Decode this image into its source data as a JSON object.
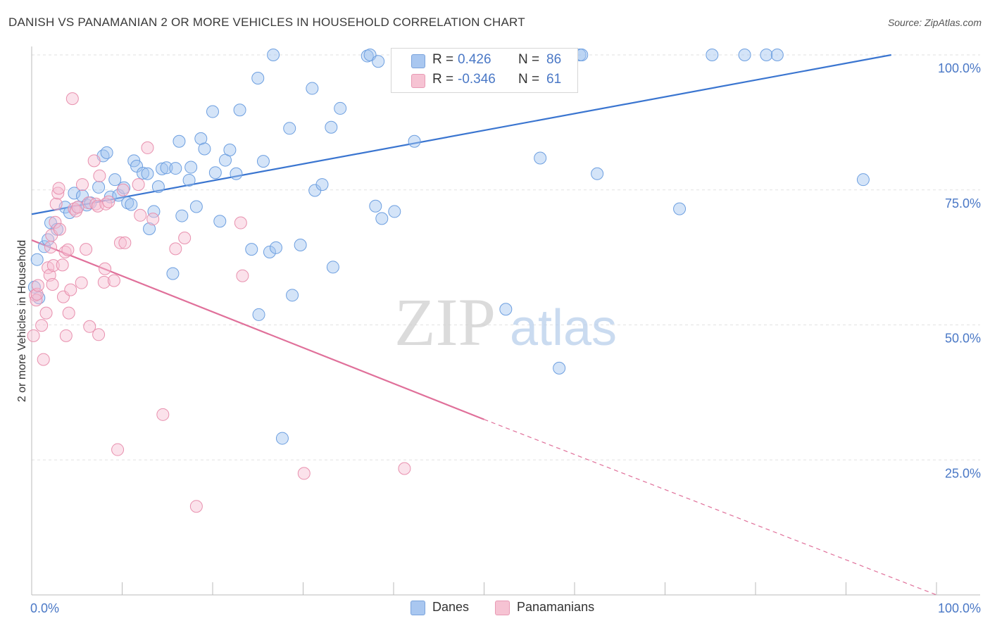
{
  "title": "DANISH VS PANAMANIAN 2 OR MORE VEHICLES IN HOUSEHOLD CORRELATION CHART",
  "source": "Source: ZipAtlas.com",
  "watermark": {
    "zip": "ZIP",
    "atlas": "atlas"
  },
  "legend_top": [
    {
      "r_label": "R =",
      "r_value": "0.426",
      "n_label": "N =",
      "n_value": "86",
      "color": "#a9c7f0",
      "border": "#7aa3dc"
    },
    {
      "r_label": "R =",
      "r_value": "-0.346",
      "n_label": "N =",
      "n_value": "61",
      "color": "#f6c3d3",
      "border": "#e89ab4"
    }
  ],
  "legend_bottom": [
    {
      "label": "Danes",
      "color": "#a9c7f0",
      "border": "#7aa3dc"
    },
    {
      "label": "Panamanians",
      "color": "#f6c3d3",
      "border": "#e89ab4"
    }
  ],
  "chart_data": {
    "type": "scatter",
    "title": "DANISH VS PANAMANIAN 2 OR MORE VEHICLES IN HOUSEHOLD CORRELATION CHART",
    "xlabel": "",
    "ylabel": "2 or more Vehicles in Household",
    "xlim": [
      0,
      100
    ],
    "ylim": [
      0,
      100
    ],
    "x_tick_labels": [
      "0.0%",
      "100.0%"
    ],
    "y_tick_labels": [
      {
        "value": 100,
        "label": "100.0%"
      },
      {
        "value": 75,
        "label": "75.0%"
      },
      {
        "value": 50,
        "label": "50.0%"
      },
      {
        "value": 25,
        "label": "25.0%"
      }
    ],
    "grid": true,
    "series": [
      {
        "name": "Danes",
        "color": "#6d9fe0",
        "fill": "rgba(160,195,240,0.45)",
        "trend": {
          "x0": 0,
          "y0": 70.5,
          "x1": 95,
          "y1": 100,
          "color": "#3a75d0"
        },
        "points": [
          [
            0.6,
            62.1
          ],
          [
            0.3,
            57.0
          ],
          [
            0.8,
            55.0
          ],
          [
            1.4,
            64.5
          ],
          [
            1.8,
            65.8
          ],
          [
            2.1,
            68.9
          ],
          [
            2.8,
            67.7
          ],
          [
            3.7,
            71.8
          ],
          [
            4.2,
            70.8
          ],
          [
            4.7,
            74.4
          ],
          [
            5.1,
            71.8
          ],
          [
            5.6,
            73.9
          ],
          [
            6.1,
            72.2
          ],
          [
            6.5,
            72.6
          ],
          [
            7.4,
            75.5
          ],
          [
            7.9,
            81.3
          ],
          [
            8.3,
            81.9
          ],
          [
            8.7,
            73.7
          ],
          [
            9.2,
            76.9
          ],
          [
            9.6,
            74.0
          ],
          [
            10.2,
            75.4
          ],
          [
            10.6,
            72.6
          ],
          [
            11.0,
            72.3
          ],
          [
            11.3,
            80.4
          ],
          [
            11.6,
            79.4
          ],
          [
            12.3,
            78.1
          ],
          [
            12.8,
            78.0
          ],
          [
            13.0,
            67.8
          ],
          [
            13.5,
            71.0
          ],
          [
            14.0,
            75.6
          ],
          [
            14.4,
            78.9
          ],
          [
            14.9,
            79.1
          ],
          [
            15.6,
            59.5
          ],
          [
            15.9,
            79.0
          ],
          [
            16.3,
            84.0
          ],
          [
            16.6,
            70.2
          ],
          [
            17.4,
            76.8
          ],
          [
            17.6,
            79.2
          ],
          [
            18.2,
            71.9
          ],
          [
            18.7,
            84.5
          ],
          [
            19.1,
            82.6
          ],
          [
            20.0,
            89.5
          ],
          [
            20.3,
            78.2
          ],
          [
            20.8,
            69.2
          ],
          [
            21.4,
            80.5
          ],
          [
            21.9,
            82.4
          ],
          [
            22.6,
            78.0
          ],
          [
            23.0,
            89.8
          ],
          [
            24.3,
            64.0
          ],
          [
            25.0,
            95.7
          ],
          [
            25.1,
            51.9
          ],
          [
            25.6,
            80.3
          ],
          [
            26.3,
            63.5
          ],
          [
            26.7,
            100.0
          ],
          [
            27.0,
            64.3
          ],
          [
            27.7,
            29.0
          ],
          [
            28.5,
            86.4
          ],
          [
            28.8,
            55.5
          ],
          [
            29.7,
            64.8
          ],
          [
            31.0,
            93.8
          ],
          [
            31.3,
            74.9
          ],
          [
            32.1,
            76.0
          ],
          [
            33.1,
            86.6
          ],
          [
            33.3,
            60.7
          ],
          [
            34.1,
            90.1
          ],
          [
            37.1,
            99.8
          ],
          [
            37.4,
            100.0
          ],
          [
            38.0,
            72.0
          ],
          [
            38.3,
            98.8
          ],
          [
            38.7,
            69.7
          ],
          [
            40.1,
            71.0
          ],
          [
            41.1,
            100.0
          ],
          [
            42.2,
            100.0
          ],
          [
            42.3,
            84.0
          ],
          [
            52.4,
            52.9
          ],
          [
            56.2,
            80.9
          ],
          [
            58.3,
            42.0
          ],
          [
            60.6,
            100.0
          ],
          [
            60.8,
            100.0
          ],
          [
            62.5,
            78.0
          ],
          [
            71.6,
            71.5
          ],
          [
            75.2,
            100.0
          ],
          [
            78.8,
            100.0
          ],
          [
            81.2,
            100.0
          ],
          [
            82.4,
            100.0
          ],
          [
            91.9,
            76.9
          ]
        ]
      },
      {
        "name": "Panamanians",
        "color": "#e890ae",
        "fill": "rgba(246,190,210,0.45)",
        "trend": {
          "x0": 0,
          "y0": 65.7,
          "x1": 50.0,
          "y1": 32.5,
          "color": "#e0709a",
          "dash_to": {
            "x": 100,
            "y": 0
          }
        },
        "points": [
          [
            0.2,
            48.0
          ],
          [
            0.4,
            55.5
          ],
          [
            0.5,
            54.6
          ],
          [
            0.6,
            55.7
          ],
          [
            0.7,
            57.3
          ],
          [
            1.1,
            49.9
          ],
          [
            1.3,
            43.6
          ],
          [
            1.6,
            52.2
          ],
          [
            1.8,
            60.6
          ],
          [
            2.0,
            59.2
          ],
          [
            2.1,
            64.4
          ],
          [
            2.2,
            66.6
          ],
          [
            2.3,
            57.5
          ],
          [
            2.4,
            61.0
          ],
          [
            2.6,
            69.0
          ],
          [
            2.7,
            72.4
          ],
          [
            2.9,
            74.4
          ],
          [
            3.0,
            75.3
          ],
          [
            3.1,
            67.7
          ],
          [
            3.4,
            61.1
          ],
          [
            3.5,
            55.2
          ],
          [
            3.7,
            63.5
          ],
          [
            3.8,
            48.0
          ],
          [
            4.0,
            63.9
          ],
          [
            4.1,
            52.2
          ],
          [
            4.3,
            56.5
          ],
          [
            4.5,
            91.9
          ],
          [
            4.7,
            71.5
          ],
          [
            4.9,
            71.1
          ],
          [
            5.1,
            71.8
          ],
          [
            5.5,
            57.8
          ],
          [
            5.6,
            76.0
          ],
          [
            6.0,
            64.0
          ],
          [
            6.3,
            72.6
          ],
          [
            6.4,
            49.7
          ],
          [
            6.9,
            80.4
          ],
          [
            7.1,
            72.4
          ],
          [
            7.3,
            72.0
          ],
          [
            7.4,
            48.2
          ],
          [
            7.5,
            77.6
          ],
          [
            8.0,
            57.9
          ],
          [
            8.1,
            60.4
          ],
          [
            8.2,
            72.4
          ],
          [
            8.5,
            72.8
          ],
          [
            9.1,
            58.2
          ],
          [
            9.5,
            26.9
          ],
          [
            9.8,
            65.2
          ],
          [
            10.1,
            75.0
          ],
          [
            10.3,
            65.2
          ],
          [
            11.8,
            76.0
          ],
          [
            12.0,
            70.3
          ],
          [
            12.8,
            82.8
          ],
          [
            13.4,
            69.6
          ],
          [
            14.5,
            33.4
          ],
          [
            15.9,
            64.1
          ],
          [
            16.9,
            66.1
          ],
          [
            18.2,
            16.4
          ],
          [
            23.1,
            68.9
          ],
          [
            23.3,
            59.1
          ],
          [
            30.1,
            22.5
          ],
          [
            41.2,
            23.4
          ]
        ]
      }
    ]
  }
}
